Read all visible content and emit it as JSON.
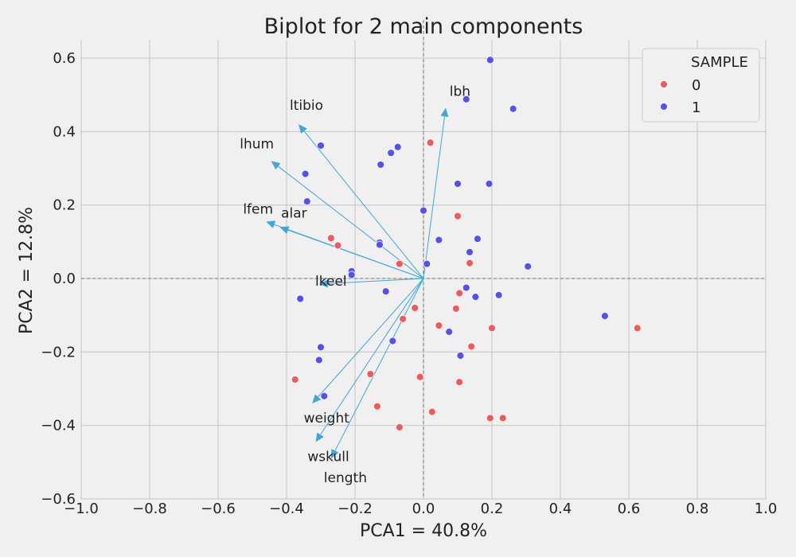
{
  "chart_data": {
    "type": "scatter",
    "title": "Biplot for  2 main components",
    "xlabel": "PCA1 = 40.8%",
    "ylabel": "PCA2 = 12.8%",
    "xlim": [
      -1.0,
      1.0
    ],
    "ylim": [
      -0.6,
      0.65
    ],
    "x_ticks": [
      -1.0,
      -0.8,
      -0.6,
      -0.4,
      -0.2,
      0.0,
      0.2,
      0.4,
      0.6,
      0.8,
      1.0
    ],
    "x_tick_labels": [
      "−1.0",
      "−0.8",
      "−0.6",
      "−0.4",
      "−0.2",
      "0.0",
      "0.2",
      "0.4",
      "0.6",
      "0.8",
      "1.0"
    ],
    "y_ticks": [
      -0.6,
      -0.4,
      -0.2,
      0.0,
      0.2,
      0.4,
      0.6
    ],
    "y_tick_labels": [
      "−0.6",
      "−0.4",
      "−0.2",
      "0.0",
      "0.2",
      "0.4",
      "0.6"
    ],
    "grid": true,
    "zero_lines": "dashed",
    "legend": {
      "title": "SAMPLE",
      "placement": "top-right",
      "entries": [
        {
          "label": "0",
          "color": "#ef5a5a"
        },
        {
          "label": "1",
          "color": "#5551ee"
        }
      ]
    },
    "series": [
      {
        "name": "0",
        "color": "#ef5a5a",
        "points": [
          [
            0.02,
            0.37
          ],
          [
            0.1,
            0.17
          ],
          [
            -0.27,
            0.11
          ],
          [
            -0.25,
            0.09
          ],
          [
            -0.07,
            0.04
          ],
          [
            0.135,
            0.042
          ],
          [
            0.105,
            -0.04
          ],
          [
            -0.025,
            -0.08
          ],
          [
            0.095,
            -0.082
          ],
          [
            -0.06,
            -0.11
          ],
          [
            0.045,
            -0.128
          ],
          [
            0.2,
            -0.135
          ],
          [
            0.14,
            -0.185
          ],
          [
            0.625,
            -0.135
          ],
          [
            -0.375,
            -0.275
          ],
          [
            -0.155,
            -0.26
          ],
          [
            -0.01,
            -0.268
          ],
          [
            0.105,
            -0.282
          ],
          [
            -0.135,
            -0.348
          ],
          [
            0.025,
            -0.363
          ],
          [
            0.195,
            -0.38
          ],
          [
            0.232,
            -0.38
          ],
          [
            -0.07,
            -0.405
          ]
        ]
      },
      {
        "name": "1",
        "color": "#5551ee",
        "points": [
          [
            0.195,
            0.595
          ],
          [
            0.125,
            0.488
          ],
          [
            0.262,
            0.462
          ],
          [
            -0.3,
            0.362
          ],
          [
            -0.075,
            0.358
          ],
          [
            -0.095,
            0.342
          ],
          [
            -0.125,
            0.31
          ],
          [
            -0.345,
            0.285
          ],
          [
            0.1,
            0.258
          ],
          [
            0.192,
            0.258
          ],
          [
            -0.34,
            0.21
          ],
          [
            0.0,
            0.185
          ],
          [
            0.158,
            0.108
          ],
          [
            0.045,
            0.105
          ],
          [
            -0.128,
            0.098
          ],
          [
            -0.128,
            0.092
          ],
          [
            0.135,
            0.072
          ],
          [
            0.305,
            0.033
          ],
          [
            0.01,
            0.04
          ],
          [
            -0.21,
            0.02
          ],
          [
            -0.21,
            0.01
          ],
          [
            -0.11,
            -0.035
          ],
          [
            0.125,
            -0.025
          ],
          [
            0.22,
            -0.045
          ],
          [
            -0.36,
            -0.055
          ],
          [
            0.152,
            -0.05
          ],
          [
            0.53,
            -0.102
          ],
          [
            0.075,
            -0.145
          ],
          [
            -0.09,
            -0.17
          ],
          [
            -0.3,
            -0.187
          ],
          [
            0.108,
            -0.21
          ],
          [
            -0.305,
            -0.222
          ],
          [
            -0.29,
            -0.32
          ]
        ]
      }
    ],
    "loadings": [
      {
        "label": "lbh",
        "x": 0.065,
        "y": 0.465
      },
      {
        "label": "ltibio",
        "x": -0.365,
        "y": 0.42
      },
      {
        "label": "lhum",
        "x": -0.445,
        "y": 0.32
      },
      {
        "label": "lfem",
        "x": -0.46,
        "y": 0.155
      },
      {
        "label": "alar",
        "x": -0.42,
        "y": 0.14
      },
      {
        "label": "lkeel",
        "x": -0.305,
        "y": -0.015
      },
      {
        "label": "weight",
        "x": -0.325,
        "y": -0.34
      },
      {
        "label": "wskull",
        "x": -0.315,
        "y": -0.445
      },
      {
        "label": "length",
        "x": -0.27,
        "y": -0.49
      }
    ],
    "loading_color": "#3ea6d9"
  }
}
